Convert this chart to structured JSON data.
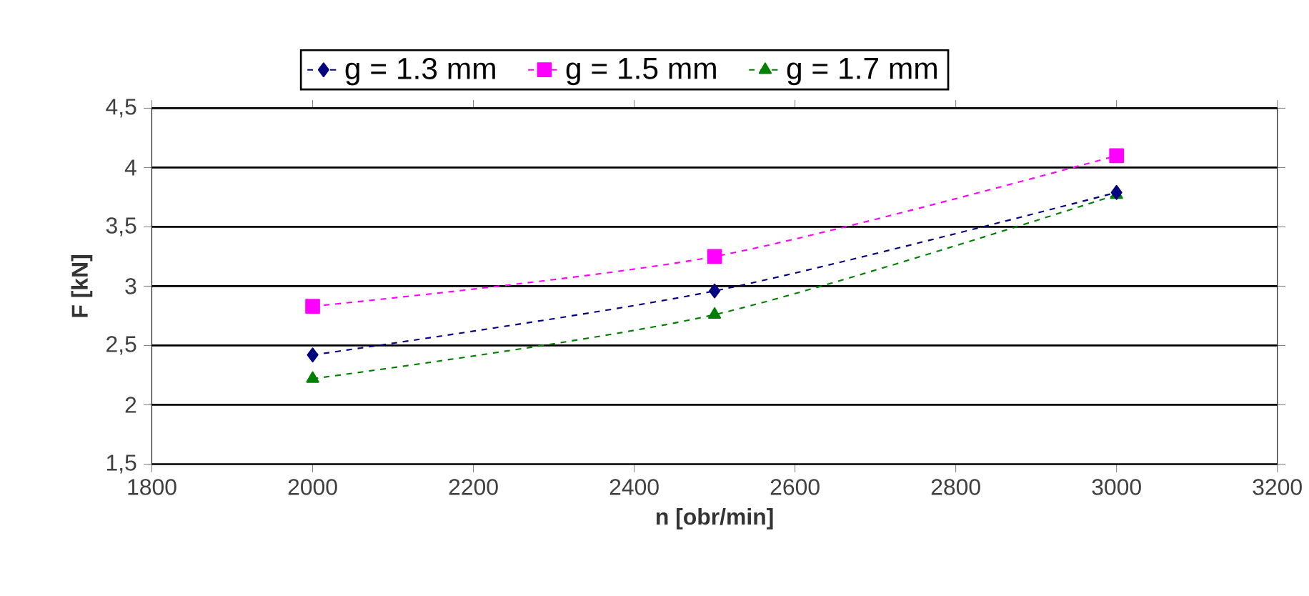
{
  "chart_data": {
    "type": "line",
    "xlabel": "n [obr/min]",
    "ylabel": "F [kN]",
    "x": [
      2000,
      2500,
      3000
    ],
    "series": [
      {
        "name": "g = 1.3 mm",
        "color": "#000080",
        "marker": "diamond",
        "values": [
          2.42,
          2.96,
          3.79
        ]
      },
      {
        "name": "g = 1.5 mm",
        "color": "#ff00ff",
        "marker": "square",
        "values": [
          2.83,
          3.25,
          4.1
        ]
      },
      {
        "name": "g = 1.7 mm",
        "color": "#008000",
        "marker": "triangle",
        "values": [
          2.22,
          2.76,
          3.77
        ]
      }
    ],
    "xlim": [
      1800,
      3200
    ],
    "xticks": [
      1800,
      2000,
      2200,
      2400,
      2600,
      2800,
      3000,
      3200
    ],
    "ylim": [
      1.5,
      4.5
    ],
    "yticks": [
      {
        "value": 1.5,
        "label": "1,5"
      },
      2,
      {
        "value": 2.5,
        "label": "2,5"
      },
      3,
      {
        "value": 3.5,
        "label": "3,5"
      },
      4,
      {
        "value": 4.5,
        "label": "4,5"
      }
    ],
    "grid": "y",
    "legend": "top",
    "line_style": "dashed"
  }
}
